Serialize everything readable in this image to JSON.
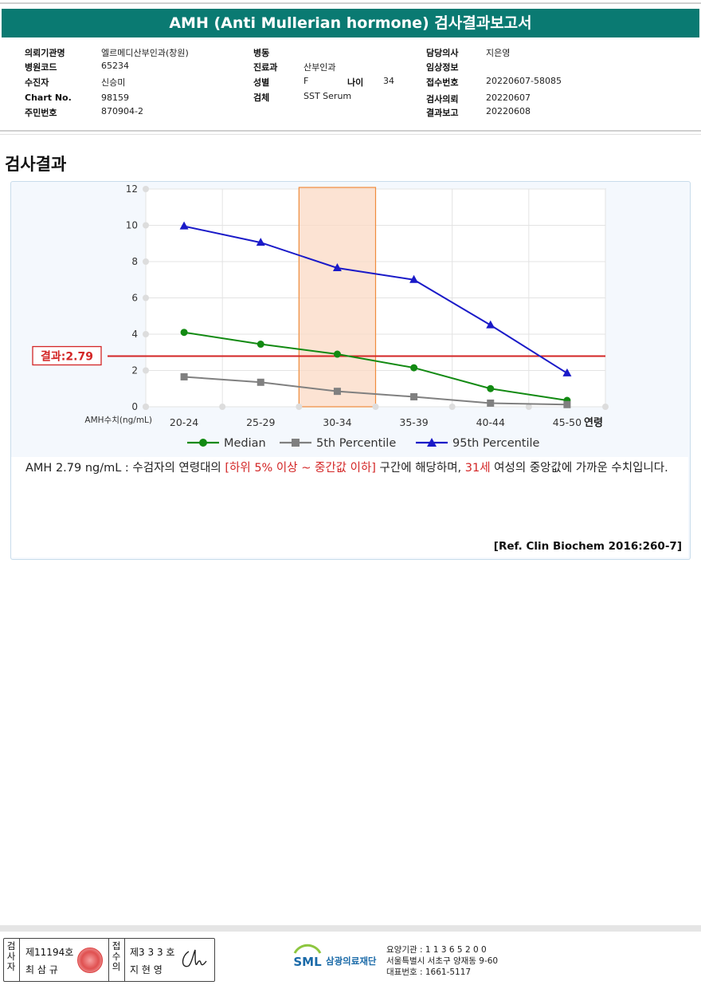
{
  "header": {
    "title": "AMH (Anti Mullerian hormone) 검사결과보고서"
  },
  "info": {
    "col1": [
      {
        "label": "의뢰기관명",
        "value": "엘르메디산부인과(창원)"
      },
      {
        "label": "병원코드",
        "value": "65234"
      },
      {
        "label": "수진자",
        "value": "신승미"
      },
      {
        "label": "Chart No.",
        "value": "98159"
      },
      {
        "label": "주민번호",
        "value": "870904-2"
      }
    ],
    "col2": [
      {
        "label": "병동",
        "value": ""
      },
      {
        "label": "진료과",
        "value": "산부인과"
      },
      {
        "label": "성별",
        "value": "F"
      },
      {
        "label": "검체",
        "value": "SST Serum"
      }
    ],
    "age_label": "나이",
    "age_value": "34",
    "col3": [
      {
        "label": "담당의사",
        "value": "지은영"
      },
      {
        "label": "임상정보",
        "value": ""
      },
      {
        "label": "접수번호",
        "value": "20220607-58085"
      },
      {
        "label": "검사의뢰",
        "value": "20220607"
      },
      {
        "label": "결과보고",
        "value": "20220608"
      }
    ]
  },
  "section_title": "검사결과",
  "chart_data": {
    "type": "line",
    "categories": [
      "20-24",
      "25-29",
      "30-34",
      "35-39",
      "40-44",
      "45-50"
    ],
    "xlabel": "연령",
    "ylabel": "AMH수치(ng/mL)",
    "ylim": [
      0,
      12
    ],
    "yticks": [
      0,
      2,
      4,
      6,
      8,
      10,
      12
    ],
    "grid": true,
    "legend_position": "bottom",
    "series": [
      {
        "name": "Median",
        "values": [
          4.1,
          3.45,
          2.9,
          2.15,
          1.0,
          0.35
        ],
        "color": "#128a12",
        "marker": "circle"
      },
      {
        "name": "5th Percentile",
        "values": [
          1.65,
          1.35,
          0.85,
          0.55,
          0.2,
          0.12
        ],
        "color": "#808080",
        "marker": "square"
      },
      {
        "name": "95th Percentile",
        "values": [
          9.95,
          9.05,
          7.65,
          7.0,
          4.5,
          1.85
        ],
        "color": "#1a1ac8",
        "marker": "triangle"
      }
    ],
    "highlight_category": "30-34",
    "result_value": 2.79,
    "result_label": "결과:2.79",
    "result_color": "#d32626"
  },
  "comment": {
    "part1": "AMH  2.79 ng/mL : 수검자의 연령대의 ",
    "highlight1": "[하위 5% 이상 ~ 중간값 이하]",
    "part2": "  구간에 해당하며, ",
    "highlight2": "31세",
    "part3": " 여성의 중앙값에 가까운 수치입니다."
  },
  "reference": "[Ref. Clin Biochem 2016:260-7]",
  "footer": {
    "inspector_label": "검사자",
    "inspector_no": "제11194호",
    "inspector_name": "최 삼 규",
    "confirm_label": "접수의",
    "confirm_no": "제3 3 3 호",
    "confirm_name": "지 현 영",
    "org_logo": "SML",
    "org_name": "삼광의료재단",
    "org_lines": [
      "요양기관 : 1 1 3 6 5 2 0 0",
      "서울특별시 서초구 양재동 9-60",
      "대표번호 : 1661-5117"
    ]
  }
}
